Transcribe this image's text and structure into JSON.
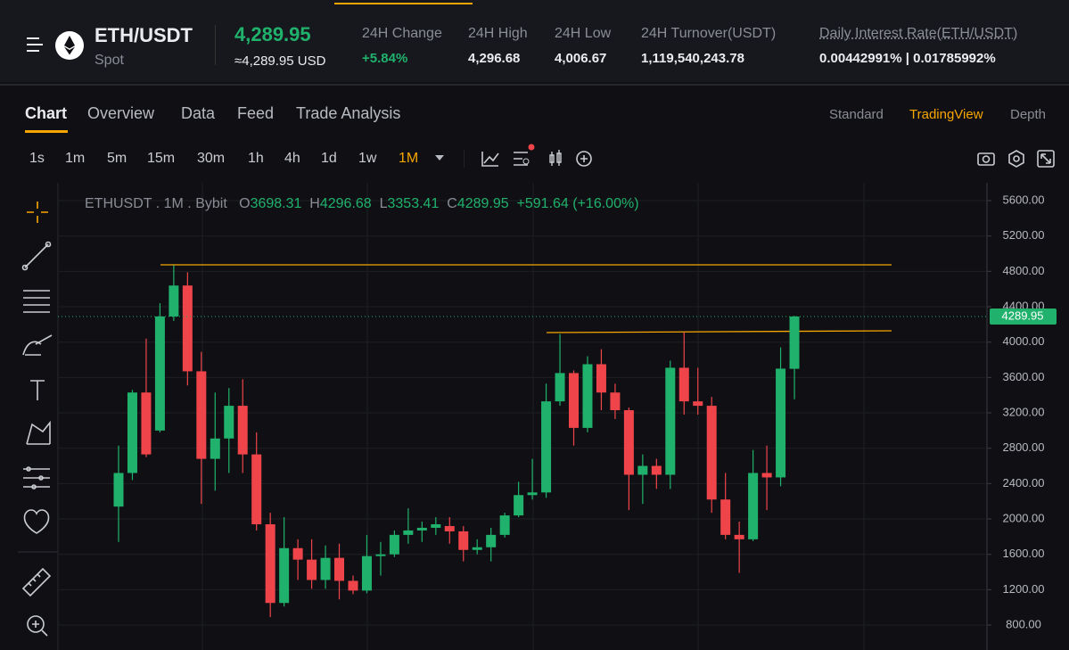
{
  "header": {
    "pair": "ETH/USDT",
    "market": "Spot",
    "price": "4,289.95",
    "price_usd": "≈4,289.95 USD",
    "stats": [
      {
        "label": "24H Change",
        "value": "+5.84%"
      },
      {
        "label": "24H High",
        "value": "4,296.68"
      },
      {
        "label": "24H Low",
        "value": "4,006.67"
      },
      {
        "label": "24H Turnover(USDT)",
        "value": "1,119,540,243.78"
      },
      {
        "label": "Daily Interest Rate(ETH/USDT)",
        "value": "0.00442991% | 0.01785992%"
      }
    ]
  },
  "tabs": [
    "Chart",
    "Overview",
    "Data",
    "Feed",
    "Trade Analysis"
  ],
  "views": [
    "Standard",
    "TradingView",
    "Depth"
  ],
  "intervals": [
    "1s",
    "1m",
    "5m",
    "15m",
    "30m",
    "1h",
    "4h",
    "1d",
    "1w",
    "1M"
  ],
  "chart_data": {
    "type": "candlestick",
    "symbol": "ETHUSDT",
    "interval": "1M",
    "exchange": "Bybit",
    "ohlc_letters": [
      "O",
      "H",
      "L",
      "C"
    ],
    "change_label": "+591.64 (+16.00%)",
    "open": [
      2140,
      2520,
      3430,
      3000,
      4290,
      4640,
      3670,
      2680,
      2910,
      3280,
      2730,
      1940,
      1050,
      1670,
      1540,
      1310,
      1560,
      1300,
      1190,
      1580,
      1600,
      1820,
      1870,
      1900,
      1920,
      1860,
      1650,
      1680,
      1820,
      2040,
      2270,
      2300,
      3330,
      3650,
      3030,
      3750,
      3430,
      3230,
      2500,
      2600,
      2500,
      3710,
      3330,
      3280,
      2220,
      1820,
      1770,
      2520,
      2470,
      3698.31
    ],
    "high": [
      2830,
      3460,
      4040,
      4440,
      4870,
      4790,
      3890,
      3430,
      3480,
      3580,
      2980,
      2070,
      2020,
      1770,
      1770,
      1700,
      1720,
      1360,
      1820,
      1740,
      1870,
      2120,
      1970,
      2020,
      2020,
      1920,
      1770,
      1900,
      2070,
      2420,
      2680,
      3530,
      4090,
      3680,
      3840,
      3920,
      3530,
      3260,
      2730,
      2680,
      3790,
      4110,
      3710,
      3380,
      2520,
      1970,
      2780,
      2830,
      3940,
      4296.68
    ],
    "low": [
      1740,
      2440,
      2700,
      2980,
      4240,
      3510,
      2170,
      2320,
      2520,
      2520,
      1870,
      890,
      1010,
      1310,
      1210,
      1210,
      1090,
      1150,
      1160,
      1360,
      1570,
      1720,
      1740,
      1820,
      1720,
      1520,
      1600,
      1520,
      1790,
      2020,
      2220,
      2240,
      3280,
      2830,
      2980,
      3230,
      3130,
      2100,
      2170,
      2340,
      2340,
      3180,
      3180,
      2070,
      1770,
      1390,
      1750,
      2100,
      2370,
      3353.41
    ],
    "close": [
      2520,
      3430,
      2730,
      4290,
      4640,
      3670,
      2680,
      2910,
      3280,
      2730,
      1940,
      1050,
      1670,
      1540,
      1310,
      1560,
      1300,
      1190,
      1580,
      1600,
      1820,
      1870,
      1900,
      1940,
      1860,
      1650,
      1680,
      1820,
      2040,
      2270,
      2300,
      3330,
      3650,
      3030,
      3750,
      3430,
      3230,
      2500,
      2600,
      2500,
      3710,
      3330,
      3280,
      2220,
      1820,
      1770,
      2520,
      2470,
      3700,
      4289.95
    ],
    "up_color": "#20b26c",
    "down_color": "#ef454a",
    "last_price": 4289.95,
    "ylim": [
      518,
      5802
    ],
    "yticks": [
      {
        "value": 800,
        "label": "800.00"
      },
      {
        "value": 1200,
        "label": "1200.00"
      },
      {
        "value": 1600,
        "label": "1600.00"
      },
      {
        "value": 2000,
        "label": "2000.00"
      },
      {
        "value": 2400,
        "label": "2400.00"
      },
      {
        "value": 2800,
        "label": "2800.00"
      },
      {
        "value": 3200,
        "label": "3200.00"
      },
      {
        "value": 3600,
        "label": "3600.00"
      },
      {
        "value": 4000,
        "label": "4000.00"
      },
      {
        "value": 4400,
        "label": "4400.00"
      },
      {
        "value": 4800,
        "label": "4800.00"
      },
      {
        "value": 5200,
        "label": "5200.00"
      },
      {
        "value": 5600,
        "label": "5600.00"
      }
    ],
    "grid": true
  }
}
